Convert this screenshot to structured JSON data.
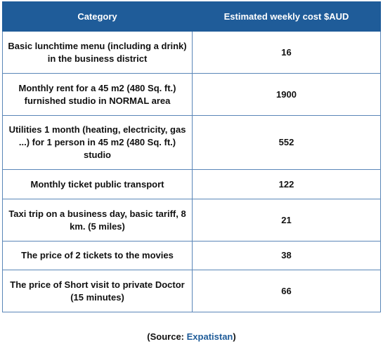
{
  "table": {
    "headers": [
      "Category",
      "Estimated weekly cost $AUD"
    ],
    "rows": [
      [
        "Basic lunchtime menu (including a drink) in the business district",
        "16"
      ],
      [
        "Monthly rent for a 45 m2 (480 Sq. ft.) furnished studio in NORMAL area",
        "1900"
      ],
      [
        "Utilities 1 month (heating, electricity, gas ...) for 1 person in 45 m2 (480 Sq. ft.) studio",
        "552"
      ],
      [
        "Monthly ticket public transport",
        "122"
      ],
      [
        "Taxi trip on a business day, basic tariff, 8 km. (5 miles)",
        "21"
      ],
      [
        "The price of 2 tickets to the movies",
        "38"
      ],
      [
        "The price of Short visit to private Doctor (15 minutes)",
        "66"
      ]
    ]
  },
  "source": {
    "prefix": "(Source: ",
    "link": "Expatistan",
    "suffix": ")"
  },
  "colors": {
    "header_bg": "#1f5c99",
    "border": "#5a86b8",
    "link": "#1f5c99"
  }
}
